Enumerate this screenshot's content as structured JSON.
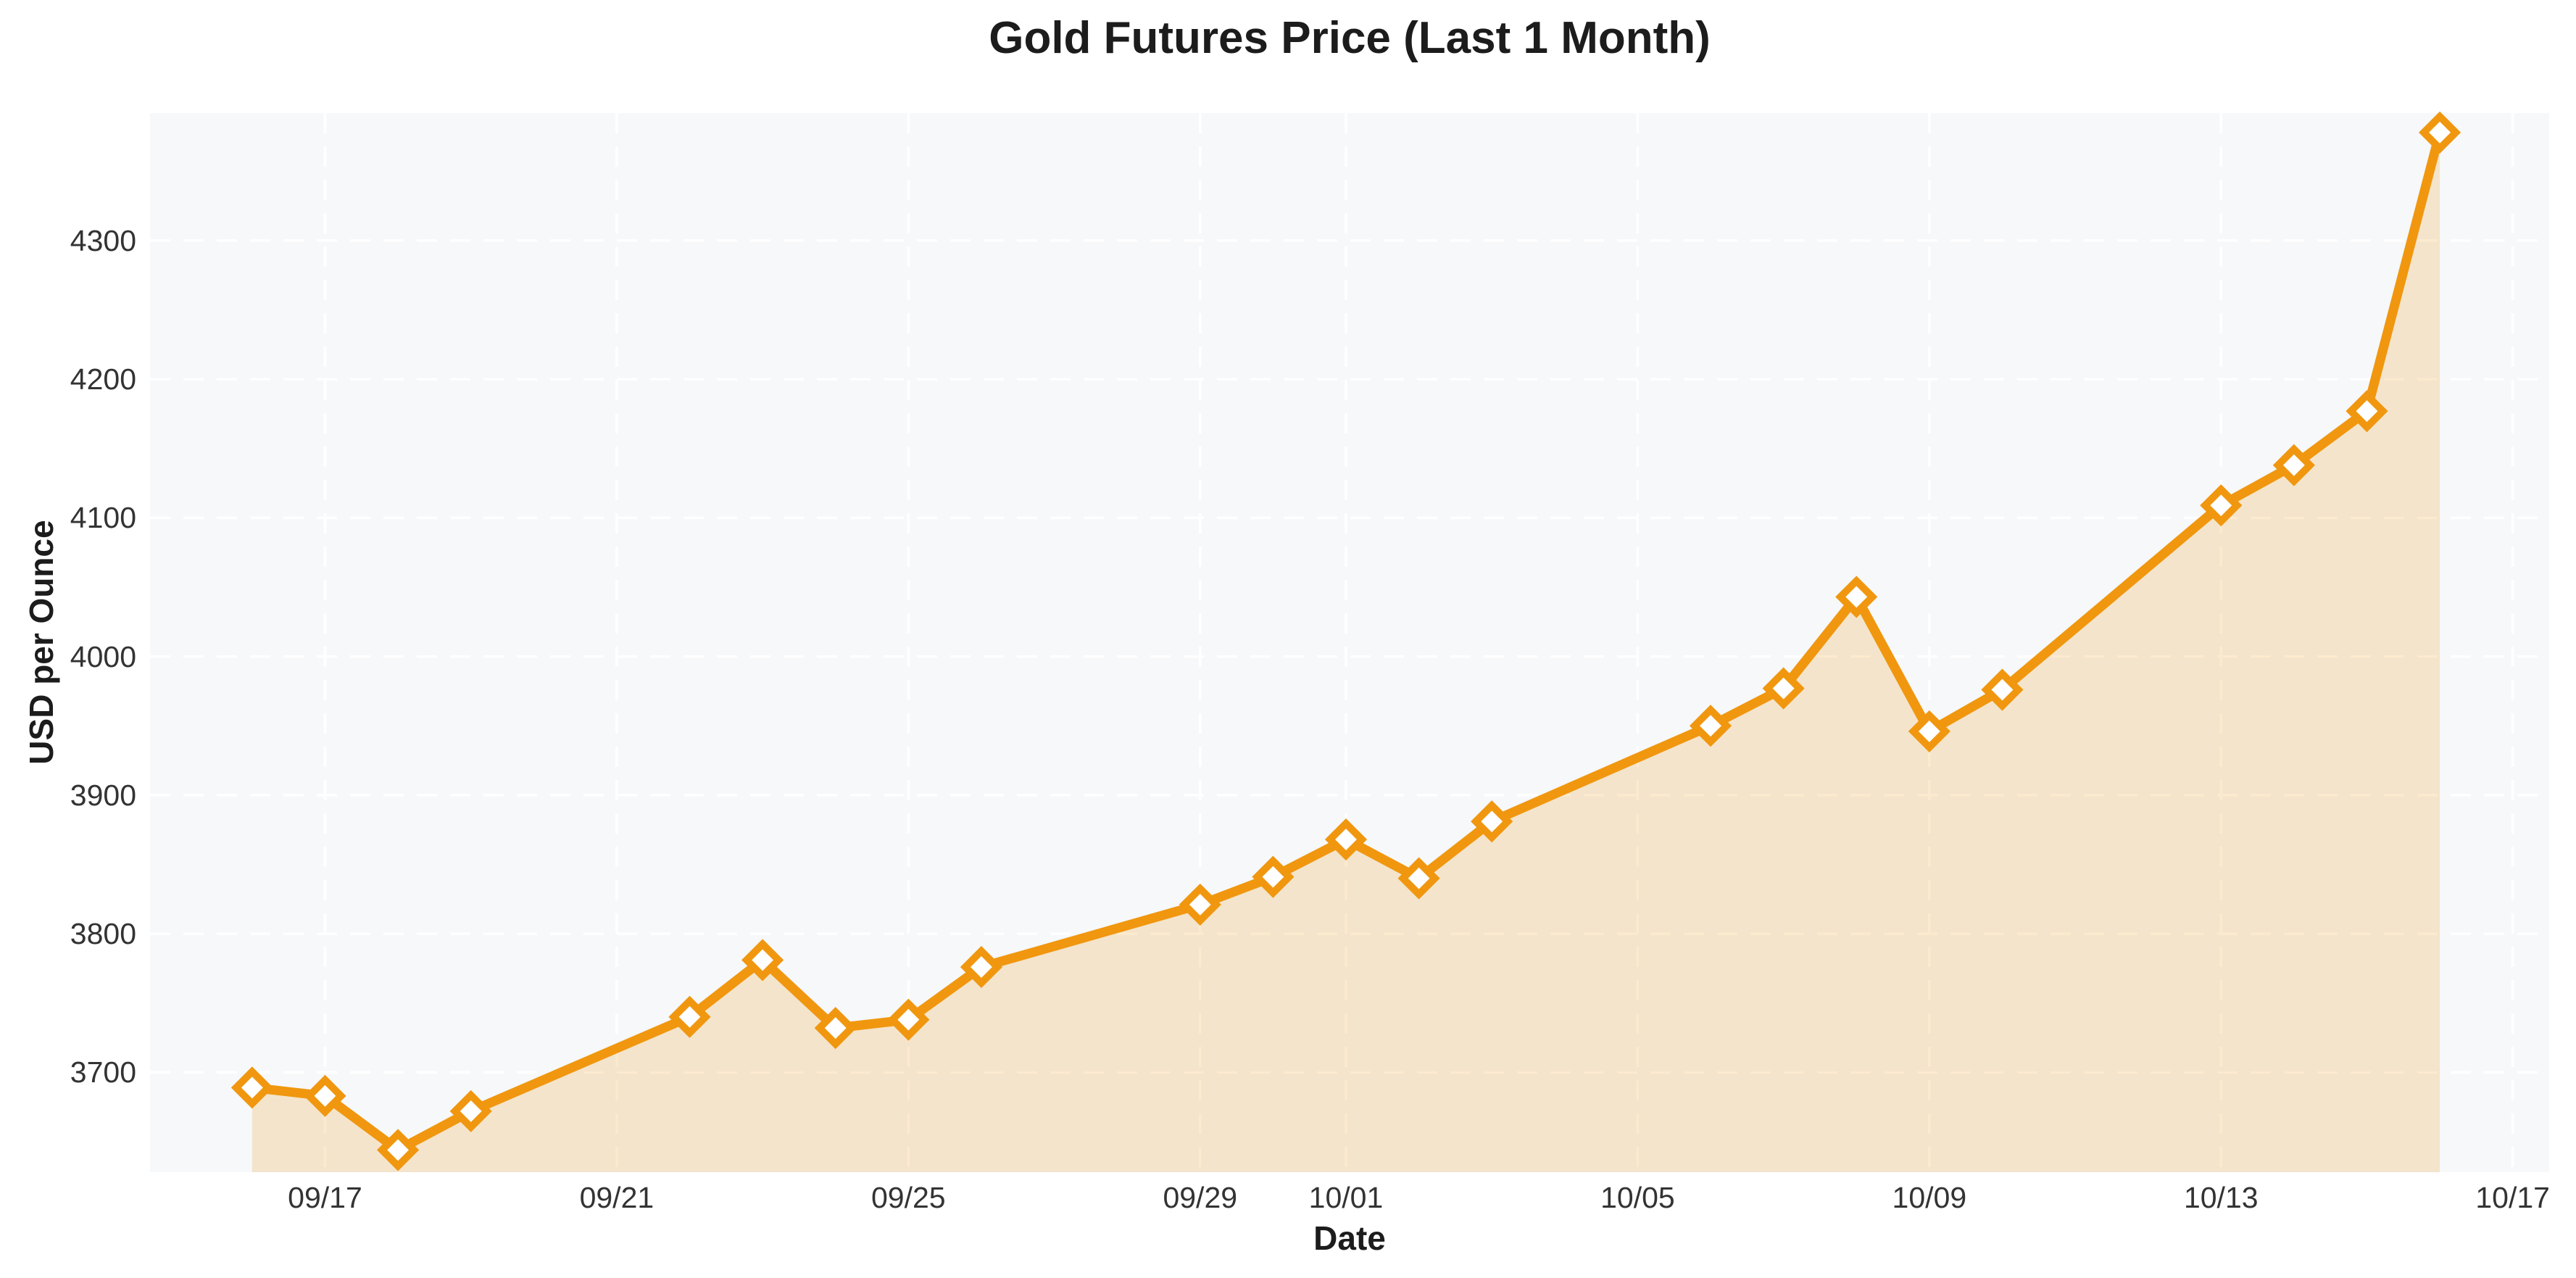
{
  "figure": {
    "kind": "static-line-chart-screenshot"
  },
  "chart_data": {
    "type": "area",
    "title": "Gold Futures Price (Last 1 Month)",
    "xlabel": "Date",
    "ylabel": "USD per Ounce",
    "series": [
      {
        "name": "Gold Futures Price",
        "dates": [
          "09/16",
          "09/17",
          "09/18",
          "09/19",
          "09/22",
          "09/23",
          "09/24",
          "09/25",
          "09/26",
          "09/29",
          "09/30",
          "10/01",
          "10/02",
          "10/03",
          "10/06",
          "10/07",
          "10/08",
          "10/09",
          "10/10",
          "10/13",
          "10/14",
          "10/15",
          "10/16"
        ],
        "day_offsets": [
          0,
          1,
          2,
          3,
          6,
          7,
          8,
          9,
          10,
          13,
          14,
          15,
          16,
          17,
          20,
          21,
          22,
          23,
          24,
          27,
          28,
          29,
          30
        ],
        "values": [
          3689,
          3683,
          3644,
          3672,
          3740,
          3781,
          3732,
          3738,
          3776,
          3821,
          3841,
          3868,
          3840,
          3881,
          3950,
          3977,
          4043,
          3946,
          3976,
          4109,
          4138,
          4177,
          4378
        ]
      }
    ],
    "xticks": [
      {
        "label": "09/17",
        "day": 1
      },
      {
        "label": "09/21",
        "day": 5
      },
      {
        "label": "09/25",
        "day": 9
      },
      {
        "label": "09/29",
        "day": 13
      },
      {
        "label": "10/01",
        "day": 15
      },
      {
        "label": "10/05",
        "day": 19
      },
      {
        "label": "10/09",
        "day": 23
      },
      {
        "label": "10/13",
        "day": 27
      },
      {
        "label": "10/17",
        "day": 31
      }
    ],
    "yticks": [
      {
        "label": "3700",
        "value": 3700
      },
      {
        "label": "3800",
        "value": 3800
      },
      {
        "label": "3900",
        "value": 3900
      },
      {
        "label": "4000",
        "value": 4000
      },
      {
        "label": "4100",
        "value": 4100
      },
      {
        "label": "4200",
        "value": 4200
      },
      {
        "label": "4300",
        "value": 4300
      }
    ],
    "xlim_days": [
      -1.4,
      31.5
    ],
    "ylim": [
      3628,
      4392
    ],
    "grid": "on-white-dashed",
    "legend": "none",
    "marker_shape": "diamond-white-face",
    "colors": {
      "line": "#F0970F",
      "marker_face": "#FFFFFF",
      "area_fill": "rgba(240,151,15,0.20)",
      "plot_background": "#F6F8FA",
      "gridline": "#FFFFFF",
      "title_text": "#1C1C1C",
      "tick_text": "#333333",
      "page_background": "#FFFFFF"
    }
  }
}
